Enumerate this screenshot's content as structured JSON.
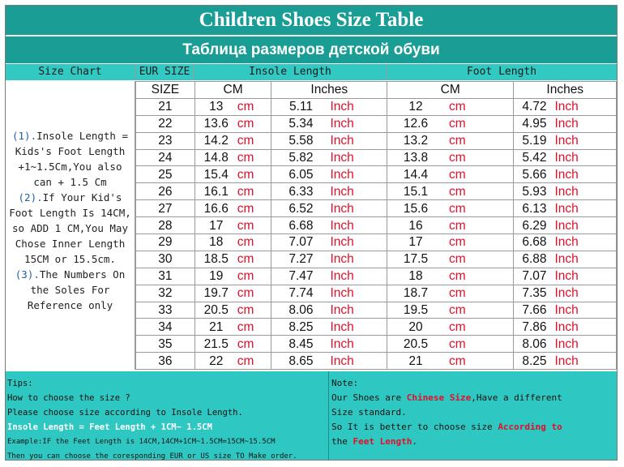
{
  "title": "Children Shoes Size Table",
  "subtitle": "Таблица размеров детской обуви",
  "headers": {
    "size_chart": "Size Chart",
    "eur_size": "EUR SIZE",
    "insole_length": "Insole Length",
    "foot_length": "Foot Length",
    "size": "SIZE",
    "cm": "CM",
    "inches": "Inches"
  },
  "units": {
    "cm": "cm",
    "inch": "Inch"
  },
  "side_notes": {
    "n1": "(1).",
    "t1": "Insole Length = Kids's Foot Length +1~1.5Cm,You also can + 1.5 Cm",
    "n2": "(2).",
    "t2": "If Your Kid's Foot Length Is 14CM,  so ADD 1 CM,You May Chose Inner Length 15CM or 15.5cm.",
    "n3": "(3).",
    "t3": "The Numbers On the Soles For Reference only"
  },
  "rows": [
    {
      "size": "21",
      "ins_cm": "13",
      "ins_in": "5.11",
      "foot_cm": "12",
      "foot_in": "4.72"
    },
    {
      "size": "22",
      "ins_cm": "13.6",
      "ins_in": "5.34",
      "foot_cm": "12.6",
      "foot_in": "4.95"
    },
    {
      "size": "23",
      "ins_cm": "14.2",
      "ins_in": "5.58",
      "foot_cm": "13.2",
      "foot_in": "5.19"
    },
    {
      "size": "24",
      "ins_cm": "14.8",
      "ins_in": "5.82",
      "foot_cm": "13.8",
      "foot_in": "5.42"
    },
    {
      "size": "25",
      "ins_cm": "15.4",
      "ins_in": "6.05",
      "foot_cm": "14.4",
      "foot_in": "5.66"
    },
    {
      "size": "26",
      "ins_cm": "16.1",
      "ins_in": "6.33",
      "foot_cm": "15.1",
      "foot_in": "5.93"
    },
    {
      "size": "27",
      "ins_cm": "16.6",
      "ins_in": "6.52",
      "foot_cm": "15.6",
      "foot_in": "6.13"
    },
    {
      "size": "28",
      "ins_cm": "17",
      "ins_in": "6.68",
      "foot_cm": "16",
      "foot_in": "6.29"
    },
    {
      "size": "29",
      "ins_cm": "18",
      "ins_in": "7.07",
      "foot_cm": "17",
      "foot_in": "6.68"
    },
    {
      "size": "30",
      "ins_cm": "18.5",
      "ins_in": "7.27",
      "foot_cm": "17.5",
      "foot_in": "6.88"
    },
    {
      "size": "31",
      "ins_cm": "19",
      "ins_in": "7.47",
      "foot_cm": "18",
      "foot_in": "7.07"
    },
    {
      "size": "32",
      "ins_cm": "19.7",
      "ins_in": "7.74",
      "foot_cm": "18.7",
      "foot_in": "7.35"
    },
    {
      "size": "33",
      "ins_cm": "20.5",
      "ins_in": "8.06",
      "foot_cm": "19.5",
      "foot_in": "7.66"
    },
    {
      "size": "34",
      "ins_cm": "21",
      "ins_in": "8.25",
      "foot_cm": "20",
      "foot_in": "7.86"
    },
    {
      "size": "35",
      "ins_cm": "21.5",
      "ins_in": "8.45",
      "foot_cm": "20.5",
      "foot_in": "8.06"
    },
    {
      "size": "36",
      "ins_cm": "22",
      "ins_in": "8.65",
      "foot_cm": "21",
      "foot_in": "8.25"
    }
  ],
  "tips": {
    "label": "Tips:",
    "l1": "How to choose the size ?",
    "l2": "Please choose size according to Insole Length.",
    "l3": "Insole Length = Feet Length + 1CM~ 1.5CM",
    "l4": "Example:IF the Feet Length is 14CM,14CM+1CM~1.5CM=15CM~15.5CM",
    "l5": "Then you can choose the coresponding EUR or US size TO Make order."
  },
  "note": {
    "label": "Note:",
    "p1a": "Our Shoes are ",
    "p1b": "Chinese Size",
    "p1c": ",Have a different",
    "p2": "Size standard.",
    "p3a": "So It is better to choose size ",
    "p3b": "According to",
    "p4a": "the ",
    "p4b": "Feet Length",
    "p4c": "."
  },
  "colors": {
    "teal_dark": "#1a9d95",
    "teal_light": "#33c9c3",
    "unit_red": "#e0102a"
  }
}
